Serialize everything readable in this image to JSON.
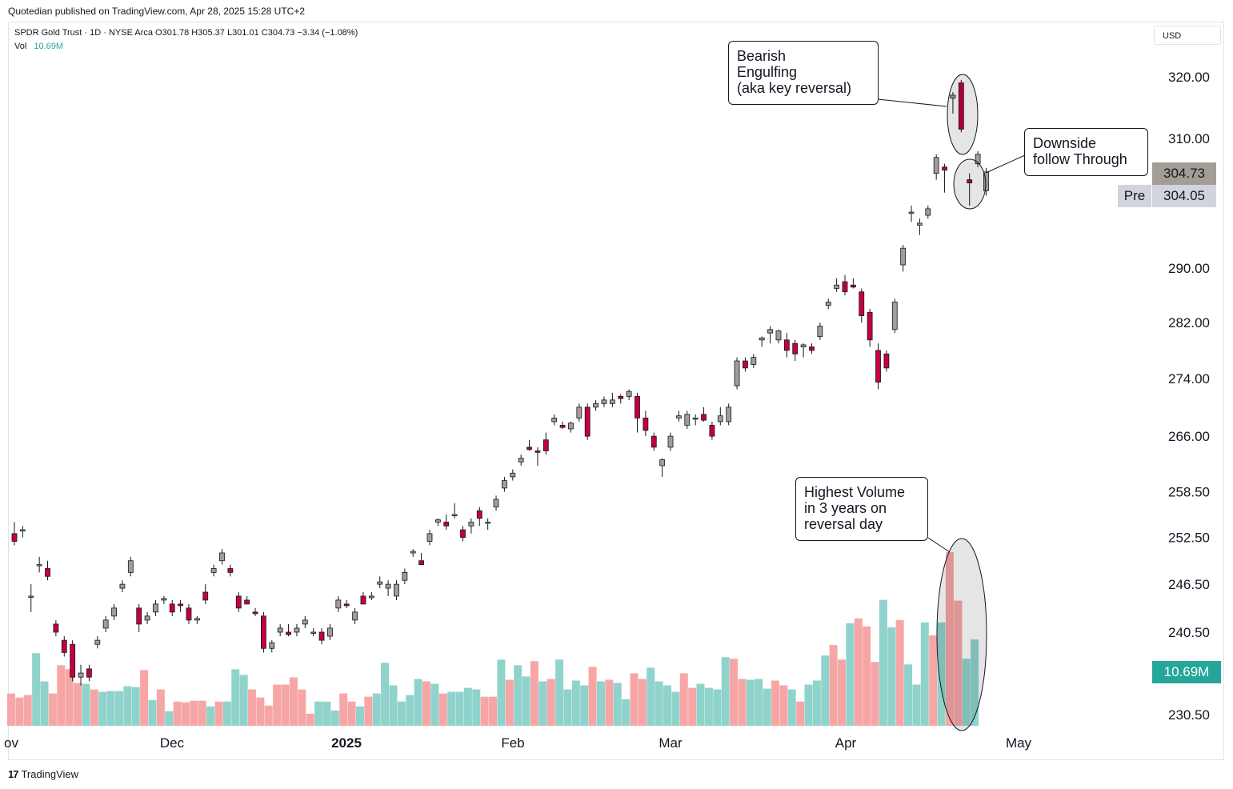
{
  "header": {
    "published": "Quotedian published on TradingView.com, Apr 28, 2025 15:28 UTC+2"
  },
  "legend": {
    "symbol_line": "SPDR Gold Trust · 1D · NYSE Arca  O301.78  H305.37  L301.01  C304.73  −3.34 (−1.08%)",
    "vol_label": "Vol",
    "vol_value": "10.69M"
  },
  "currency": "USD",
  "footer": {
    "brand": "TradingView"
  },
  "badges": {
    "last_price": "304.73",
    "pre_label": "Pre",
    "pre_price": "304.05",
    "volume": "10.69M"
  },
  "annotations": {
    "bearish": "Bearish\nEngulfing\n(aka key reversal)",
    "downside": "Downside\nfollow Through",
    "volume": "Highest Volume\nin 3 years on\nreversal day"
  },
  "colors": {
    "up": "#26a69a",
    "down": "#f23645",
    "upFill": "#a49d96",
    "downFill": "#c4003e",
    "volUp": "#8fd3cc",
    "volDown": "#f7a6a6",
    "priceBadge": "#a49d96",
    "volBadge": "#26a69a"
  },
  "chart_data": {
    "type": "candlestick",
    "price_axis": {
      "ticks": [
        320.0,
        310.0,
        290.0,
        282.0,
        274.0,
        266.0,
        258.5,
        252.5,
        246.5,
        240.5,
        230.5
      ],
      "scale": "log"
    },
    "time_axis": {
      "labels": [
        "ov",
        "Dec",
        "2025",
        "Feb",
        "Mar",
        "Apr",
        "May"
      ]
    },
    "candles": [
      {
        "o": 253.0,
        "h": 254.5,
        "l": 251.5,
        "c": 252.0
      },
      {
        "o": 253.5,
        "h": 254.0,
        "l": 252.5,
        "c": 253.5
      },
      {
        "o": 245.0,
        "h": 246.5,
        "l": 243.0,
        "c": 245.0
      },
      {
        "o": 249.0,
        "h": 250.0,
        "l": 248.0,
        "c": 249.0
      },
      {
        "o": 248.5,
        "h": 249.5,
        "l": 247.0,
        "c": 247.5
      },
      {
        "o": 241.5,
        "h": 242.0,
        "l": 240.0,
        "c": 240.5
      },
      {
        "o": 239.5,
        "h": 240.0,
        "l": 237.5,
        "c": 238.0
      },
      {
        "o": 239.0,
        "h": 239.5,
        "l": 234.5,
        "c": 235.0
      },
      {
        "o": 235.0,
        "h": 236.5,
        "l": 234.0,
        "c": 235.5
      },
      {
        "o": 236.0,
        "h": 236.5,
        "l": 234.5,
        "c": 235.0
      },
      {
        "o": 239.0,
        "h": 240.0,
        "l": 238.5,
        "c": 239.5
      },
      {
        "o": 241.0,
        "h": 242.5,
        "l": 240.5,
        "c": 242.0
      },
      {
        "o": 242.5,
        "h": 244.0,
        "l": 242.0,
        "c": 243.5
      },
      {
        "o": 246.0,
        "h": 247.0,
        "l": 245.5,
        "c": 246.5
      },
      {
        "o": 248.0,
        "h": 250.0,
        "l": 247.5,
        "c": 249.5
      },
      {
        "o": 243.5,
        "h": 244.0,
        "l": 240.5,
        "c": 241.5
      },
      {
        "o": 242.0,
        "h": 243.0,
        "l": 241.5,
        "c": 242.5
      },
      {
        "o": 243.0,
        "h": 244.5,
        "l": 242.5,
        "c": 244.0
      },
      {
        "o": 244.5,
        "h": 245.0,
        "l": 244.0,
        "c": 244.7
      },
      {
        "o": 244.0,
        "h": 244.5,
        "l": 242.5,
        "c": 243.0
      },
      {
        "o": 244.0,
        "h": 244.5,
        "l": 243.0,
        "c": 243.8
      },
      {
        "o": 243.5,
        "h": 244.0,
        "l": 241.5,
        "c": 242.0
      },
      {
        "o": 242.0,
        "h": 242.5,
        "l": 241.5,
        "c": 242.2
      },
      {
        "o": 245.5,
        "h": 246.5,
        "l": 244.0,
        "c": 244.5
      },
      {
        "o": 248.0,
        "h": 249.0,
        "l": 247.5,
        "c": 248.5
      },
      {
        "o": 249.5,
        "h": 251.0,
        "l": 249.0,
        "c": 250.5
      },
      {
        "o": 248.5,
        "h": 249.0,
        "l": 247.5,
        "c": 248.0
      },
      {
        "o": 245.0,
        "h": 245.5,
        "l": 243.0,
        "c": 243.5
      },
      {
        "o": 244.5,
        "h": 245.0,
        "l": 244.0,
        "c": 244.0
      },
      {
        "o": 243.0,
        "h": 243.5,
        "l": 242.5,
        "c": 242.8
      },
      {
        "o": 242.5,
        "h": 243.0,
        "l": 238.0,
        "c": 238.5
      },
      {
        "o": 238.5,
        "h": 239.5,
        "l": 238.0,
        "c": 239.2
      },
      {
        "o": 240.5,
        "h": 241.5,
        "l": 240.0,
        "c": 241.0
      },
      {
        "o": 240.5,
        "h": 241.5,
        "l": 240.0,
        "c": 240.2
      },
      {
        "o": 240.5,
        "h": 241.5,
        "l": 240.0,
        "c": 241.0
      },
      {
        "o": 241.5,
        "h": 242.5,
        "l": 241.0,
        "c": 242.0
      },
      {
        "o": 240.5,
        "h": 241.0,
        "l": 240.0,
        "c": 240.5
      },
      {
        "o": 240.5,
        "h": 241.0,
        "l": 239.0,
        "c": 239.5
      },
      {
        "o": 240.0,
        "h": 241.5,
        "l": 239.5,
        "c": 241.0
      },
      {
        "o": 243.5,
        "h": 245.0,
        "l": 243.0,
        "c": 244.5
      },
      {
        "o": 244.0,
        "h": 244.5,
        "l": 243.5,
        "c": 243.8
      },
      {
        "o": 242.0,
        "h": 243.5,
        "l": 241.5,
        "c": 243.0
      },
      {
        "o": 245.0,
        "h": 245.5,
        "l": 244.0,
        "c": 244.0
      },
      {
        "o": 244.8,
        "h": 245.5,
        "l": 244.5,
        "c": 245.0
      },
      {
        "o": 246.5,
        "h": 247.5,
        "l": 246.0,
        "c": 246.8
      },
      {
        "o": 246.0,
        "h": 247.0,
        "l": 245.0,
        "c": 246.5
      },
      {
        "o": 245.0,
        "h": 247.0,
        "l": 244.5,
        "c": 246.5
      },
      {
        "o": 247.0,
        "h": 248.5,
        "l": 246.5,
        "c": 248.0
      },
      {
        "o": 250.5,
        "h": 251.0,
        "l": 250.0,
        "c": 250.7
      },
      {
        "o": 249.5,
        "h": 250.5,
        "l": 249.0,
        "c": 249.0
      },
      {
        "o": 252.0,
        "h": 253.5,
        "l": 251.5,
        "c": 253.0
      },
      {
        "o": 254.5,
        "h": 255.0,
        "l": 254.0,
        "c": 254.8
      },
      {
        "o": 254.5,
        "h": 255.5,
        "l": 253.5,
        "c": 254.0
      },
      {
        "o": 255.5,
        "h": 257.0,
        "l": 255.0,
        "c": 255.5
      },
      {
        "o": 253.5,
        "h": 254.0,
        "l": 252.0,
        "c": 252.5
      },
      {
        "o": 254.0,
        "h": 255.0,
        "l": 253.0,
        "c": 254.5
      },
      {
        "o": 256.0,
        "h": 256.5,
        "l": 254.0,
        "c": 255.0
      },
      {
        "o": 254.5,
        "h": 255.0,
        "l": 253.5,
        "c": 254.5
      },
      {
        "o": 256.5,
        "h": 258.0,
        "l": 256.0,
        "c": 257.5
      },
      {
        "o": 259.0,
        "h": 260.5,
        "l": 258.5,
        "c": 260.0
      },
      {
        "o": 260.5,
        "h": 261.5,
        "l": 260.0,
        "c": 261.0
      },
      {
        "o": 262.5,
        "h": 263.5,
        "l": 262.0,
        "c": 263.0
      },
      {
        "o": 264.5,
        "h": 265.5,
        "l": 264.0,
        "c": 264.2
      },
      {
        "o": 264.0,
        "h": 264.5,
        "l": 262.0,
        "c": 263.8
      },
      {
        "o": 265.5,
        "h": 266.5,
        "l": 263.5,
        "c": 264.0
      },
      {
        "o": 268.0,
        "h": 269.0,
        "l": 267.5,
        "c": 268.5
      },
      {
        "o": 267.5,
        "h": 268.0,
        "l": 267.0,
        "c": 267.2
      },
      {
        "o": 267.0,
        "h": 268.0,
        "l": 266.5,
        "c": 267.8
      },
      {
        "o": 268.5,
        "h": 270.5,
        "l": 268.0,
        "c": 270.0
      },
      {
        "o": 270.0,
        "h": 270.5,
        "l": 265.5,
        "c": 266.0
      },
      {
        "o": 270.0,
        "h": 271.0,
        "l": 269.5,
        "c": 270.5
      },
      {
        "o": 270.5,
        "h": 271.5,
        "l": 270.0,
        "c": 271.0
      },
      {
        "o": 270.5,
        "h": 272.0,
        "l": 270.0,
        "c": 271.0
      },
      {
        "o": 271.5,
        "h": 271.8,
        "l": 270.5,
        "c": 271.2
      },
      {
        "o": 271.5,
        "h": 272.5,
        "l": 271.0,
        "c": 272.2
      },
      {
        "o": 271.5,
        "h": 272.0,
        "l": 266.5,
        "c": 268.5
      },
      {
        "o": 268.5,
        "h": 269.5,
        "l": 266.0,
        "c": 266.8
      },
      {
        "o": 266.0,
        "h": 266.5,
        "l": 264.0,
        "c": 264.5
      },
      {
        "o": 262.0,
        "h": 263.0,
        "l": 260.5,
        "c": 262.8
      },
      {
        "o": 264.5,
        "h": 266.5,
        "l": 264.0,
        "c": 266.0
      },
      {
        "o": 268.5,
        "h": 269.5,
        "l": 268.0,
        "c": 268.8
      },
      {
        "o": 267.5,
        "h": 269.5,
        "l": 267.0,
        "c": 269.0
      },
      {
        "o": 268.5,
        "h": 269.0,
        "l": 267.5,
        "c": 268.5
      },
      {
        "o": 269.0,
        "h": 270.0,
        "l": 268.0,
        "c": 268.2
      },
      {
        "o": 267.5,
        "h": 268.0,
        "l": 265.5,
        "c": 266.0
      },
      {
        "o": 268.0,
        "h": 270.0,
        "l": 267.5,
        "c": 268.8
      },
      {
        "o": 268.0,
        "h": 270.5,
        "l": 267.5,
        "c": 270.0
      },
      {
        "o": 273.0,
        "h": 277.0,
        "l": 272.5,
        "c": 276.5
      },
      {
        "o": 276.5,
        "h": 277.0,
        "l": 275.0,
        "c": 275.5
      },
      {
        "o": 276.0,
        "h": 277.5,
        "l": 275.5,
        "c": 277.0
      },
      {
        "o": 279.5,
        "h": 280.0,
        "l": 278.5,
        "c": 279.8
      },
      {
        "o": 280.5,
        "h": 281.5,
        "l": 279.0,
        "c": 281.0
      },
      {
        "o": 279.5,
        "h": 281.0,
        "l": 279.0,
        "c": 280.8
      },
      {
        "o": 279.5,
        "h": 280.5,
        "l": 277.0,
        "c": 278.0
      },
      {
        "o": 279.0,
        "h": 279.5,
        "l": 276.5,
        "c": 277.5
      },
      {
        "o": 278.5,
        "h": 279.0,
        "l": 277.0,
        "c": 278.8
      },
      {
        "o": 278.5,
        "h": 279.0,
        "l": 277.5,
        "c": 278.0
      },
      {
        "o": 280.0,
        "h": 282.0,
        "l": 279.5,
        "c": 281.5
      },
      {
        "o": 284.5,
        "h": 285.5,
        "l": 284.0,
        "c": 285.0
      },
      {
        "o": 287.0,
        "h": 288.5,
        "l": 286.5,
        "c": 287.5
      },
      {
        "o": 288.0,
        "h": 289.0,
        "l": 286.0,
        "c": 286.5
      },
      {
        "o": 287.5,
        "h": 288.5,
        "l": 287.0,
        "c": 287.2
      },
      {
        "o": 286.5,
        "h": 287.0,
        "l": 282.0,
        "c": 283.0
      },
      {
        "o": 283.5,
        "h": 284.0,
        "l": 278.5,
        "c": 279.5
      },
      {
        "o": 278.0,
        "h": 279.0,
        "l": 272.5,
        "c": 273.5
      },
      {
        "o": 277.5,
        "h": 278.0,
        "l": 275.0,
        "c": 275.5
      },
      {
        "o": 281.0,
        "h": 285.5,
        "l": 280.5,
        "c": 285.0
      },
      {
        "o": 290.5,
        "h": 293.5,
        "l": 289.5,
        "c": 293.0
      },
      {
        "o": 298.5,
        "h": 299.5,
        "l": 297.0,
        "c": 298.5
      },
      {
        "o": 296.5,
        "h": 297.5,
        "l": 295.0,
        "c": 296.8
      },
      {
        "o": 298.0,
        "h": 299.5,
        "l": 297.5,
        "c": 299.0
      },
      {
        "o": 304.5,
        "h": 307.5,
        "l": 303.5,
        "c": 307.0
      },
      {
        "o": 305.5,
        "h": 306.0,
        "l": 301.5,
        "c": 305.0
      },
      {
        "o": 316.5,
        "h": 317.5,
        "l": 314.0,
        "c": 317.0
      },
      {
        "o": 319.0,
        "h": 319.5,
        "l": 311.0,
        "c": 311.5
      },
      {
        "o": 303.5,
        "h": 304.5,
        "l": 299.5,
        "c": 303.0
      },
      {
        "o": 306.0,
        "h": 308.0,
        "l": 305.5,
        "c": 307.5
      },
      {
        "o": 301.78,
        "h": 305.37,
        "l": 301.01,
        "c": 304.73
      }
    ],
    "volume": [
      {
        "v": 4.0,
        "up": false
      },
      {
        "v": 3.5,
        "up": false
      },
      {
        "v": 3.8,
        "up": false
      },
      {
        "v": 9.0,
        "up": true
      },
      {
        "v": 5.5,
        "up": true
      },
      {
        "v": 4.0,
        "up": false
      },
      {
        "v": 7.5,
        "up": false
      },
      {
        "v": 7.0,
        "up": false
      },
      {
        "v": 5.3,
        "up": false
      },
      {
        "v": 5.2,
        "up": true
      },
      {
        "v": 4.5,
        "up": false
      },
      {
        "v": 4.2,
        "up": true
      },
      {
        "v": 4.3,
        "up": true
      },
      {
        "v": 4.3,
        "up": true
      },
      {
        "v": 4.9,
        "up": true
      },
      {
        "v": 4.8,
        "up": true
      },
      {
        "v": 6.9,
        "up": false
      },
      {
        "v": 3.2,
        "up": true
      },
      {
        "v": 4.5,
        "up": false
      },
      {
        "v": 1.8,
        "up": true
      },
      {
        "v": 3.0,
        "up": false
      },
      {
        "v": 2.9,
        "up": false
      },
      {
        "v": 3.1,
        "up": false
      },
      {
        "v": 3.1,
        "up": false
      },
      {
        "v": 2.4,
        "up": true
      },
      {
        "v": 3.0,
        "up": false
      },
      {
        "v": 3.0,
        "up": true
      },
      {
        "v": 7.0,
        "up": true
      },
      {
        "v": 6.3,
        "up": true
      },
      {
        "v": 4.5,
        "up": false
      },
      {
        "v": 3.5,
        "up": false
      },
      {
        "v": 2.5,
        "up": false
      },
      {
        "v": 5.1,
        "up": false
      },
      {
        "v": 5.1,
        "up": false
      },
      {
        "v": 6.0,
        "up": false
      },
      {
        "v": 4.5,
        "up": false
      },
      {
        "v": 1.5,
        "up": false
      },
      {
        "v": 3.0,
        "up": true
      },
      {
        "v": 3.0,
        "up": true
      },
      {
        "v": 1.9,
        "up": true
      },
      {
        "v": 4.0,
        "up": false
      },
      {
        "v": 3.0,
        "up": false
      },
      {
        "v": 2.4,
        "up": true
      },
      {
        "v": 3.6,
        "up": false
      },
      {
        "v": 4.0,
        "up": true
      },
      {
        "v": 7.8,
        "up": true
      },
      {
        "v": 5.0,
        "up": true
      },
      {
        "v": 3.0,
        "up": true
      },
      {
        "v": 3.8,
        "up": true
      },
      {
        "v": 5.8,
        "up": true
      },
      {
        "v": 5.5,
        "up": false
      },
      {
        "v": 5.2,
        "up": true
      },
      {
        "v": 4.0,
        "up": false
      },
      {
        "v": 4.2,
        "up": true
      },
      {
        "v": 4.2,
        "up": true
      },
      {
        "v": 4.7,
        "up": true
      },
      {
        "v": 4.5,
        "up": true
      },
      {
        "v": 3.6,
        "up": false
      },
      {
        "v": 3.6,
        "up": false
      },
      {
        "v": 8.2,
        "up": true
      },
      {
        "v": 5.7,
        "up": false
      },
      {
        "v": 7.5,
        "up": true
      },
      {
        "v": 6.1,
        "up": true
      },
      {
        "v": 8.0,
        "up": false
      },
      {
        "v": 5.5,
        "up": true
      },
      {
        "v": 5.8,
        "up": false
      },
      {
        "v": 8.2,
        "up": true
      },
      {
        "v": 4.5,
        "up": true
      },
      {
        "v": 5.6,
        "up": true
      },
      {
        "v": 5.0,
        "up": true
      },
      {
        "v": 7.3,
        "up": false
      },
      {
        "v": 5.5,
        "up": true
      },
      {
        "v": 5.7,
        "up": false
      },
      {
        "v": 5.3,
        "up": true
      },
      {
        "v": 3.3,
        "up": true
      },
      {
        "v": 6.5,
        "up": false
      },
      {
        "v": 5.8,
        "up": false
      },
      {
        "v": 7.2,
        "up": true
      },
      {
        "v": 5.5,
        "up": true
      },
      {
        "v": 5.0,
        "up": true
      },
      {
        "v": 4.2,
        "up": true
      },
      {
        "v": 6.5,
        "up": false
      },
      {
        "v": 4.7,
        "up": false
      },
      {
        "v": 5.2,
        "up": true
      },
      {
        "v": 4.7,
        "up": true
      },
      {
        "v": 4.5,
        "up": true
      },
      {
        "v": 8.5,
        "up": true
      },
      {
        "v": 8.3,
        "up": false
      },
      {
        "v": 5.8,
        "up": false
      },
      {
        "v": 5.7,
        "up": true
      },
      {
        "v": 5.8,
        "up": true
      },
      {
        "v": 4.6,
        "up": true
      },
      {
        "v": 5.6,
        "up": false
      },
      {
        "v": 5.0,
        "up": false
      },
      {
        "v": 4.5,
        "up": true
      },
      {
        "v": 3.0,
        "up": false
      },
      {
        "v": 5.1,
        "up": true
      },
      {
        "v": 5.6,
        "up": true
      },
      {
        "v": 8.7,
        "up": true
      },
      {
        "v": 10.0,
        "up": false
      },
      {
        "v": 8.2,
        "up": false
      },
      {
        "v": 12.7,
        "up": true
      },
      {
        "v": 13.3,
        "up": false
      },
      {
        "v": 12.3,
        "up": false
      },
      {
        "v": 7.9,
        "up": false
      },
      {
        "v": 15.6,
        "up": true
      },
      {
        "v": 12.2,
        "up": true
      },
      {
        "v": 13.1,
        "up": false
      },
      {
        "v": 7.6,
        "up": true
      },
      {
        "v": 5.1,
        "up": true
      },
      {
        "v": 12.8,
        "up": true
      },
      {
        "v": 11.2,
        "up": false
      },
      {
        "v": 12.8,
        "up": true
      },
      {
        "v": 21.5,
        "up": false
      },
      {
        "v": 15.5,
        "up": false
      },
      {
        "v": 8.3,
        "up": true
      },
      {
        "v": 10.69,
        "up": true
      }
    ]
  }
}
